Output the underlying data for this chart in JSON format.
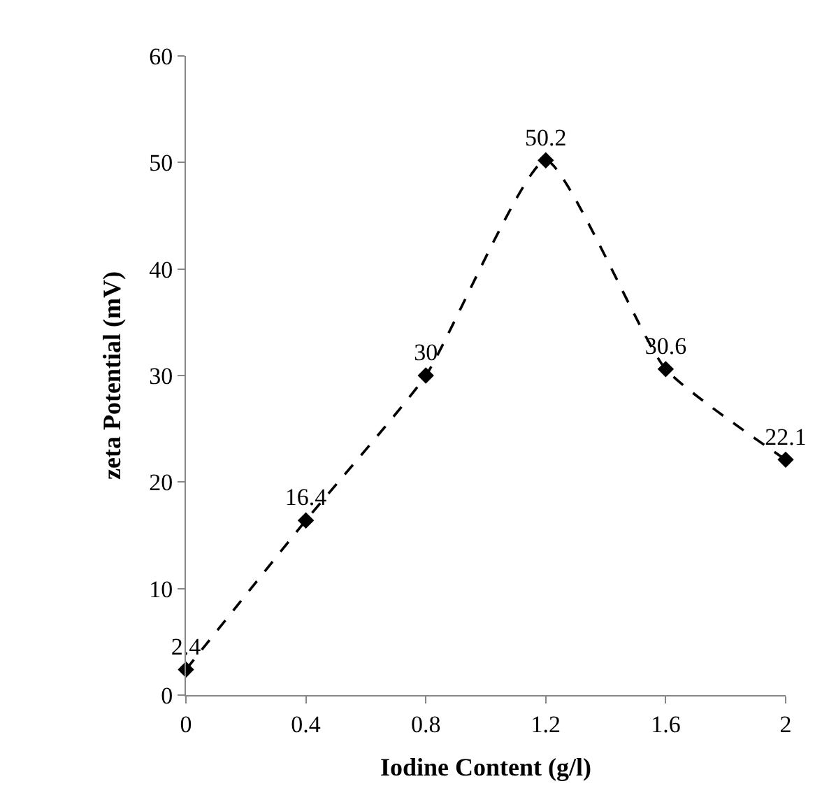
{
  "chart_data": {
    "type": "line",
    "xlabel": "Iodine Content (g/l)",
    "ylabel": "zeta Potential (mV)",
    "x": [
      0,
      0.4,
      0.8,
      1.2,
      1.6,
      2
    ],
    "series": [
      {
        "color": "#000000",
        "values": [
          2.4,
          16.4,
          30,
          50.2,
          30.6,
          22.1
        ]
      }
    ],
    "xlim": [
      0,
      2
    ],
    "xticks": [
      0,
      0.4,
      0.8,
      1.2,
      1.6,
      2
    ],
    "ylim": [
      0,
      60
    ],
    "yticks": [
      0,
      10,
      20,
      30,
      40,
      50,
      60
    ],
    "legend": false,
    "marker": "diamond",
    "line_style": "dashed",
    "data_labels": true
  }
}
